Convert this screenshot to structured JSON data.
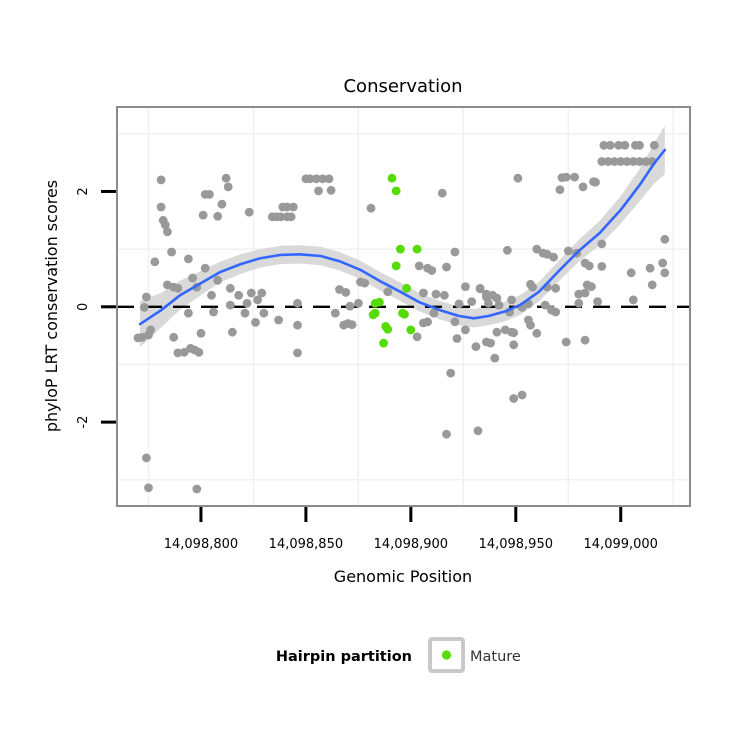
{
  "chart_data": {
    "type": "scatter",
    "title": "Conservation",
    "xlabel": "Genomic Position",
    "ylabel": "phyloP LRT conservation scores",
    "xlim": [
      14098760,
      14099033
    ],
    "ylim": [
      -3.455,
      3.465
    ],
    "x_ticks": [
      14098800,
      14098850,
      14098900,
      14098950,
      14099000
    ],
    "x_tick_labels": [
      "14,098,800",
      "14,098,850",
      "14,098,900",
      "14,098,950",
      "14,099,000"
    ],
    "y_ticks": [
      2,
      0,
      -2
    ],
    "y_tick_labels": [
      "2",
      "0",
      "-2"
    ],
    "x_minor_gridlines": [
      14098775,
      14098825,
      14098875,
      14098925,
      14098975,
      14099025
    ],
    "y_minor_gridlines": [
      3,
      1,
      -1,
      -3
    ],
    "reference_line_y": 0,
    "grid_on": true,
    "legend": {
      "position": "bottom",
      "title": "Hairpin partition",
      "entries": [
        {
          "label": "Mature",
          "color": "#55DC05"
        }
      ]
    },
    "colors": {
      "other_points": "#999999",
      "mature_points": "#55DC05",
      "smooth_line": "#3366FF",
      "confidence_band": "#D9D9D9",
      "gridline": "#F0F0F0",
      "panel_border": "#8C8C8C",
      "reference_line": "#000000",
      "legend_key_border": "#C9C9C9"
    },
    "series": [
      {
        "name": "Other",
        "color": "#999999",
        "points": [
          [
            14098781,
            2.2
          ],
          [
            14098812,
            2.23
          ],
          [
            14098813,
            2.08
          ],
          [
            14098802,
            1.95
          ],
          [
            14098804,
            1.95
          ],
          [
            14098810,
            1.78
          ],
          [
            14098781,
            1.73
          ],
          [
            14098801,
            1.59
          ],
          [
            14098808,
            1.57
          ],
          [
            14098823,
            1.64
          ],
          [
            14098834,
            1.56
          ],
          [
            14098836,
            1.56
          ],
          [
            14098838,
            1.56
          ],
          [
            14098841,
            1.56
          ],
          [
            14098843,
            1.56
          ],
          [
            14098839,
            1.73
          ],
          [
            14098841,
            1.73
          ],
          [
            14098844,
            1.73
          ],
          [
            14098782,
            1.5
          ],
          [
            14098783,
            1.42
          ],
          [
            14098784,
            1.3
          ],
          [
            14098786,
            0.95
          ],
          [
            14098778,
            0.78
          ],
          [
            14098794,
            0.83
          ],
          [
            14098796,
            0.5
          ],
          [
            14098798,
            0.34
          ],
          [
            14098784,
            0.38
          ],
          [
            14098787,
            0.34
          ],
          [
            14098789,
            0.32
          ],
          [
            14098774,
            0.17
          ],
          [
            14098802,
            0.67
          ],
          [
            14098808,
            0.46
          ],
          [
            14098814,
            0.32
          ],
          [
            14098773,
            -0.01
          ],
          [
            14098770,
            -0.54
          ],
          [
            14098772,
            -0.53
          ],
          [
            14098775,
            -0.49
          ],
          [
            14098776,
            -0.4
          ],
          [
            14098787,
            -0.53
          ],
          [
            14098789,
            -0.8
          ],
          [
            14098792,
            -0.79
          ],
          [
            14098795,
            -0.72
          ],
          [
            14098797,
            -0.75
          ],
          [
            14098799,
            -0.79
          ],
          [
            14098794,
            -0.11
          ],
          [
            14098800,
            -0.46
          ],
          [
            14098805,
            0.2
          ],
          [
            14098806,
            -0.09
          ],
          [
            14098815,
            -0.44
          ],
          [
            14098814,
            0.03
          ],
          [
            14098818,
            0.2
          ],
          [
            14098822,
            0.06
          ],
          [
            14098824,
            0.24
          ],
          [
            14098827,
            0.12
          ],
          [
            14098829,
            0.24
          ],
          [
            14098821,
            -0.11
          ],
          [
            14098826,
            -0.27
          ],
          [
            14098830,
            -0.11
          ],
          [
            14098837,
            -0.23
          ],
          [
            14098846,
            -0.32
          ],
          [
            14098846,
            -0.8
          ],
          [
            14098846,
            0.06
          ],
          [
            14098774,
            -2.62
          ],
          [
            14098775,
            -3.14
          ],
          [
            14098798,
            -3.16
          ],
          [
            14098850,
            2.22
          ],
          [
            14098852,
            2.22
          ],
          [
            14098855,
            2.22
          ],
          [
            14098858,
            2.22
          ],
          [
            14098861,
            2.22
          ],
          [
            14098856,
            2.01
          ],
          [
            14098862,
            2.02
          ],
          [
            14098881,
            1.71
          ],
          [
            14098915,
            1.97
          ],
          [
            14098866,
            0.3
          ],
          [
            14098869,
            0.25
          ],
          [
            14098876,
            0.43
          ],
          [
            14098878,
            0.41
          ],
          [
            14098871,
            0.01
          ],
          [
            14098875,
            0.06
          ],
          [
            14098864,
            -0.11
          ],
          [
            14098868,
            -0.32
          ],
          [
            14098870,
            -0.29
          ],
          [
            14098872,
            -0.31
          ],
          [
            14098889,
            0.26
          ],
          [
            14098921,
            0.95
          ],
          [
            14098904,
            0.71
          ],
          [
            14098908,
            0.67
          ],
          [
            14098910,
            0.63
          ],
          [
            14098917,
            0.69
          ],
          [
            14098926,
            0.35
          ],
          [
            14098933,
            0.32
          ],
          [
            14098936,
            0.17
          ],
          [
            14098906,
            0.24
          ],
          [
            14098912,
            0.22
          ],
          [
            14098916,
            0.2
          ],
          [
            14098906,
            -0.28
          ],
          [
            14098908,
            -0.26
          ],
          [
            14098903,
            -0.52
          ],
          [
            14098911,
            -0.11
          ],
          [
            14098921,
            -0.26
          ],
          [
            14098923,
            0.05
          ],
          [
            14098929,
            0.09
          ],
          [
            14098926,
            -0.4
          ],
          [
            14098922,
            -0.55
          ],
          [
            14098931,
            -0.69
          ],
          [
            14098936,
            -0.61
          ],
          [
            14098938,
            -0.63
          ],
          [
            14098940,
            -0.89
          ],
          [
            14098937,
            0.06
          ],
          [
            14098942,
            0.03
          ],
          [
            14098919,
            -1.15
          ],
          [
            14098917,
            -2.21
          ],
          [
            14098932,
            -2.15
          ],
          [
            14098933,
            0.31
          ],
          [
            14098936,
            0.22
          ],
          [
            14098939,
            0.2
          ],
          [
            14098941,
            0.15
          ],
          [
            14098948,
            0.12
          ],
          [
            14098953,
            -0.01
          ],
          [
            14098947,
            -0.09
          ],
          [
            14098941,
            -0.44
          ],
          [
            14098945,
            -0.4
          ],
          [
            14098948,
            -0.44
          ],
          [
            14098949,
            -0.45
          ],
          [
            14098949,
            -0.66
          ],
          [
            14098949,
            -1.59
          ],
          [
            14098953,
            -1.53
          ],
          [
            14098946,
            0.98
          ],
          [
            14098951,
            2.23
          ],
          [
            14098972,
            2.24
          ],
          [
            14098974,
            2.25
          ],
          [
            14098978,
            2.25
          ],
          [
            14098982,
            2.08
          ],
          [
            14098987,
            2.17
          ],
          [
            14098971,
            2.03
          ],
          [
            14098960,
            1.0
          ],
          [
            14098963,
            0.93
          ],
          [
            14098965,
            0.91
          ],
          [
            14098968,
            0.86
          ],
          [
            14098975,
            0.97
          ],
          [
            14098979,
            0.93
          ],
          [
            14098983,
            0.76
          ],
          [
            14098985,
            0.71
          ],
          [
            14098991,
            0.7
          ],
          [
            14098957,
            0.39
          ],
          [
            14098958,
            0.34
          ],
          [
            14098965,
            0.34
          ],
          [
            14098969,
            0.32
          ],
          [
            14098956,
            0.05
          ],
          [
            14098964,
            0.03
          ],
          [
            14098967,
            -0.06
          ],
          [
            14098969,
            -0.09
          ],
          [
            14098980,
            0.06
          ],
          [
            14098989,
            0.09
          ],
          [
            14098980,
            0.22
          ],
          [
            14098983,
            0.24
          ],
          [
            14098984,
            0.38
          ],
          [
            14098986,
            0.35
          ],
          [
            14098956,
            -0.23
          ],
          [
            14098957,
            -0.32
          ],
          [
            14098960,
            -0.46
          ],
          [
            14098974,
            -0.61
          ],
          [
            14098983,
            -0.58
          ],
          [
            14098991,
            1.09
          ],
          [
            14098988,
            2.16
          ],
          [
            14098992,
            2.8
          ],
          [
            14098995,
            2.8
          ],
          [
            14098999,
            2.8
          ],
          [
            14099002,
            2.8
          ],
          [
            14099007,
            2.8
          ],
          [
            14099009,
            2.8
          ],
          [
            14099016,
            2.8
          ],
          [
            14098991,
            2.52
          ],
          [
            14098994,
            2.52
          ],
          [
            14098997,
            2.52
          ],
          [
            14099000,
            2.52
          ],
          [
            14099003,
            2.52
          ],
          [
            14099006,
            2.52
          ],
          [
            14099009,
            2.52
          ],
          [
            14099012,
            2.52
          ],
          [
            14099015,
            2.52
          ],
          [
            14099021,
            1.17
          ],
          [
            14099005,
            0.59
          ],
          [
            14099014,
            0.67
          ],
          [
            14099020,
            0.76
          ],
          [
            14099021,
            0.59
          ],
          [
            14099015,
            0.38
          ],
          [
            14099006,
            0.12
          ]
        ]
      },
      {
        "name": "Mature",
        "color": "#55DC05",
        "points": [
          [
            14098891,
            2.23
          ],
          [
            14098893,
            2.01
          ],
          [
            14098895,
            1.0
          ],
          [
            14098903,
            1.0
          ],
          [
            14098893,
            0.71
          ],
          [
            14098898,
            0.32
          ],
          [
            14098883,
            0.06
          ],
          [
            14098885,
            0.08
          ],
          [
            14098882,
            -0.14
          ],
          [
            14098883,
            -0.11
          ],
          [
            14098888,
            -0.34
          ],
          [
            14098889,
            -0.39
          ],
          [
            14098896,
            -0.11
          ],
          [
            14098897,
            -0.13
          ],
          [
            14098900,
            -0.4
          ],
          [
            14098887,
            -0.63
          ]
        ]
      }
    ],
    "smooth_line": {
      "color": "#3366FF",
      "band_color": "#D9D9D9",
      "points_pos_score_bandhalfwidth": [
        [
          14098771,
          -0.3,
          0.4
        ],
        [
          14098781,
          -0.06,
          0.3
        ],
        [
          14098790,
          0.2,
          0.25
        ],
        [
          14098800,
          0.41,
          0.21
        ],
        [
          14098809,
          0.6,
          0.18
        ],
        [
          14098819,
          0.74,
          0.17
        ],
        [
          14098828,
          0.84,
          0.16
        ],
        [
          14098838,
          0.9,
          0.16
        ],
        [
          14098847,
          0.91,
          0.16
        ],
        [
          14098857,
          0.88,
          0.16
        ],
        [
          14098866,
          0.79,
          0.16
        ],
        [
          14098876,
          0.64,
          0.16
        ],
        [
          14098885,
          0.45,
          0.16
        ],
        [
          14098895,
          0.26,
          0.16
        ],
        [
          14098904,
          0.08,
          0.16
        ],
        [
          14098914,
          -0.06,
          0.16
        ],
        [
          14098923,
          -0.16,
          0.16
        ],
        [
          14098930,
          -0.2,
          0.16
        ],
        [
          14098937,
          -0.16,
          0.16
        ],
        [
          14098945,
          -0.08,
          0.17
        ],
        [
          14098952,
          0.03,
          0.17
        ],
        [
          14098961,
          0.26,
          0.17
        ],
        [
          14098971,
          0.64,
          0.18
        ],
        [
          14098980,
          0.97,
          0.19
        ],
        [
          14098990,
          1.28,
          0.21
        ],
        [
          14099000,
          1.68,
          0.24
        ],
        [
          14099009,
          2.11,
          0.28
        ],
        [
          14099016,
          2.49,
          0.35
        ],
        [
          14099021,
          2.72,
          0.42
        ]
      ]
    }
  }
}
